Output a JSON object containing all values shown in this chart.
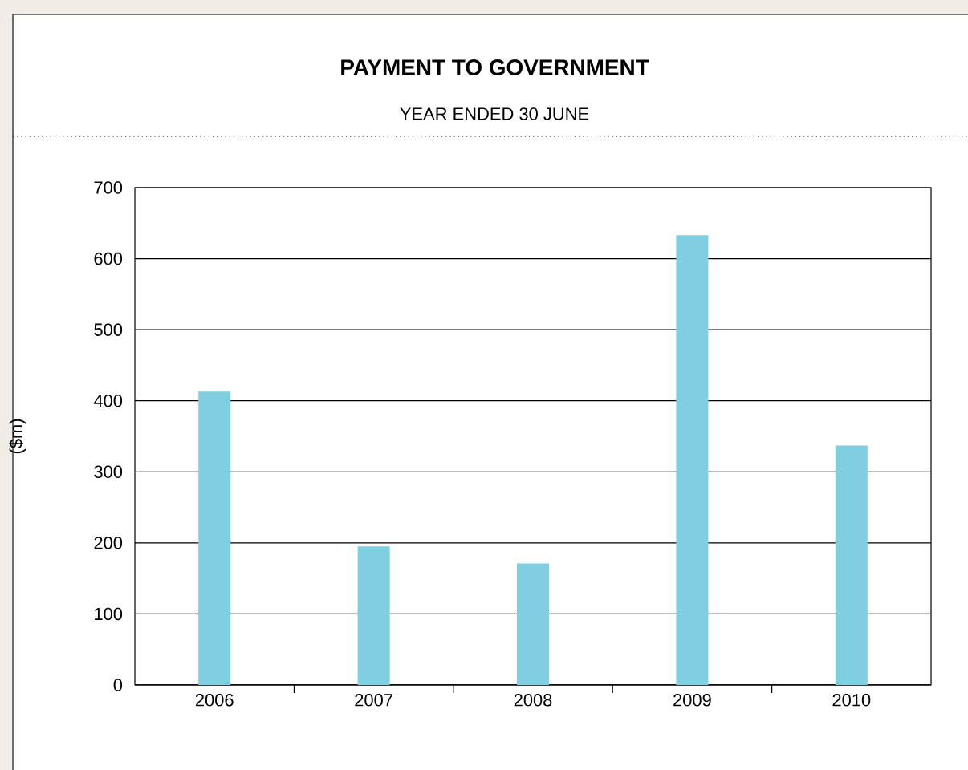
{
  "chart_data": {
    "type": "bar",
    "title": "PAYMENT TO GOVERNMENT",
    "subtitle": "YEAR ENDED 30 JUNE",
    "ylabel": "($m)",
    "categories": [
      "2006",
      "2007",
      "2008",
      "2009",
      "2010"
    ],
    "values": [
      413,
      195,
      171,
      633,
      337
    ],
    "color": "#7fcfe0",
    "ylim": [
      0,
      700
    ],
    "yticks": [
      0,
      100,
      200,
      300,
      400,
      500,
      600,
      700
    ],
    "grid": "y"
  }
}
